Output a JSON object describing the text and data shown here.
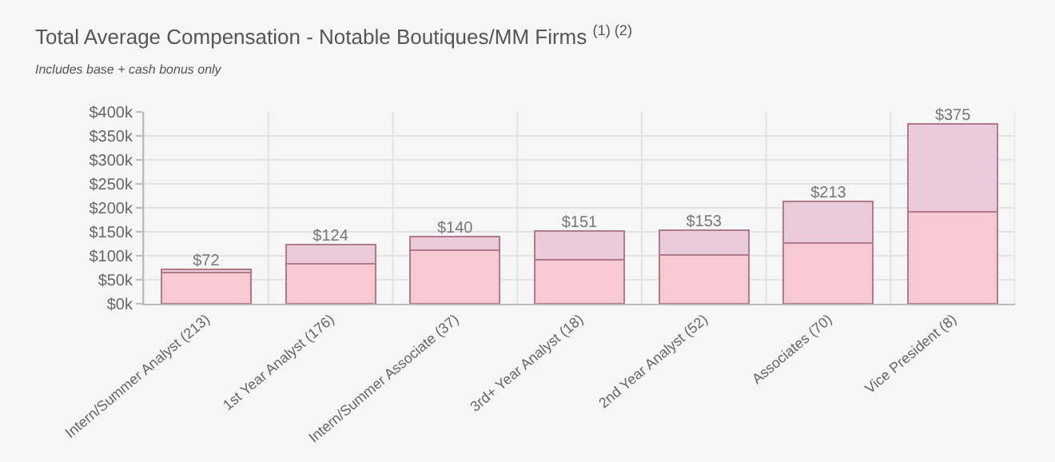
{
  "chart_data": {
    "type": "bar",
    "title": "Total Average Compensation - Notable Boutiques/MM Firms $^{(1) (2)}$",
    "subtitle": "Includes base + cash bonus only",
    "categories": [
      "Intern/Summer Analyst (213)",
      "1st Year Analyst (176)",
      "Intern/Summer Associate (37)",
      "3rd+ Year Analyst (18)",
      "2nd Year Analyst (52)",
      "Associates (70)",
      "Vice President (8)"
    ],
    "stacked": true,
    "series": [
      {
        "color": "#f6c9d3",
        "values": [
          65,
          83,
          112,
          92,
          101,
          126,
          192
        ]
      },
      {
        "color": "#e9cbdc",
        "values": [
          7,
          41,
          28,
          59,
          52,
          87,
          183
        ]
      }
    ],
    "totals": [
      "$72",
      "$124",
      "$140",
      "$151",
      "$153",
      "$213",
      "$375"
    ],
    "ylim": [
      0,
      400
    ],
    "yticks": [
      {
        "value": 0,
        "label": "$0k"
      },
      {
        "value": 50,
        "label": "$50k"
      },
      {
        "value": 100,
        "label": "$100k"
      },
      {
        "value": 150,
        "label": "$150k"
      },
      {
        "value": 200,
        "label": "$200k"
      },
      {
        "value": 250,
        "label": "$250k"
      },
      {
        "value": 300,
        "label": "$300k"
      },
      {
        "value": 350,
        "label": "$350k"
      },
      {
        "value": 400,
        "label": "$400k"
      }
    ],
    "grid": true
  }
}
